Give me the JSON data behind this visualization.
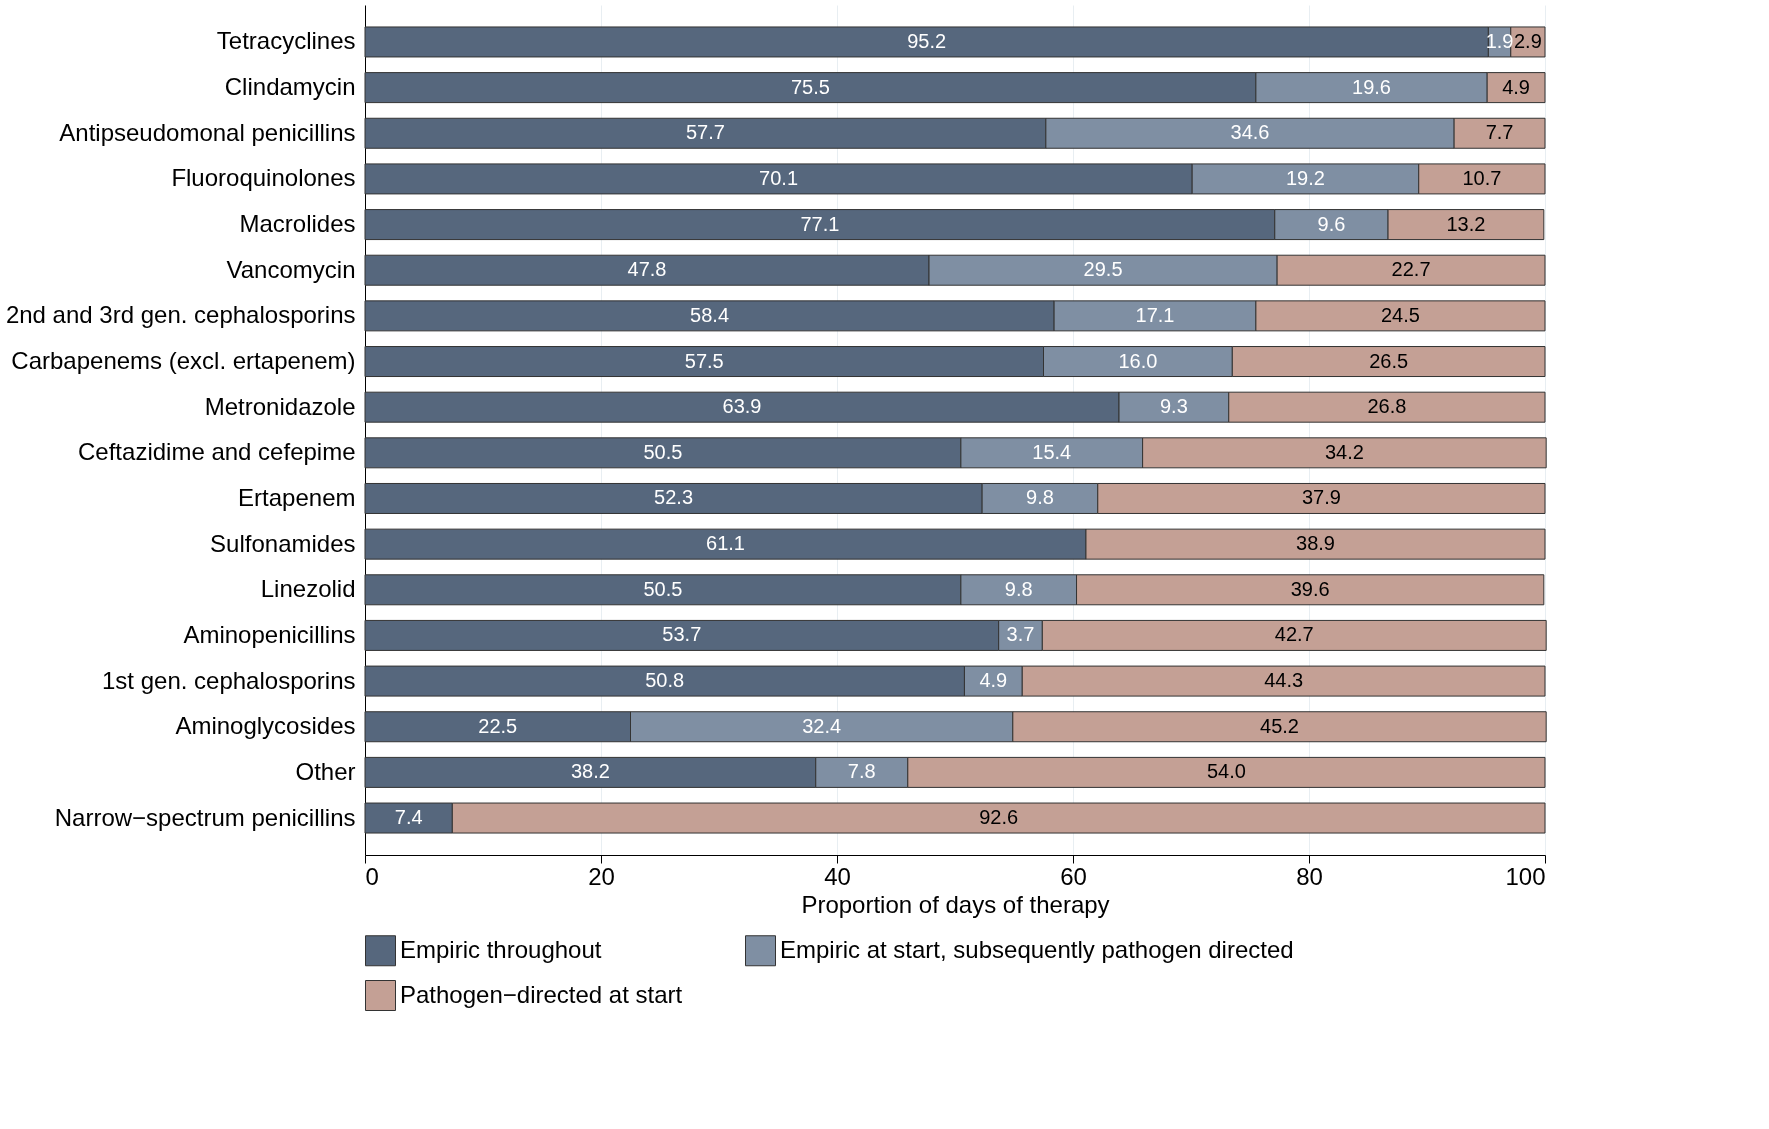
{
  "chart_data": {
    "type": "bar",
    "orientation": "horizontal",
    "stacked": true,
    "categories": [
      "Tetracyclines",
      "Clindamycin",
      "Antipseudomonal penicillins",
      "Fluoroquinolones",
      "Macrolides",
      "Vancomycin",
      "2nd and 3rd gen. cephalosporins",
      "Carbapenems (excl. ertapenem)",
      "Metronidazole",
      "Ceftazidime and cefepime",
      "Ertapenem",
      "Sulfonamides",
      "Linezolid",
      "Aminopenicillins",
      "1st gen. cephalosporins",
      "Aminoglycosides",
      "Other",
      "Narrow−spectrum penicillins"
    ],
    "series": [
      {
        "name": "Empiric throughout",
        "color": "#56677d",
        "values": [
          95.2,
          75.5,
          57.7,
          70.1,
          77.1,
          47.8,
          58.4,
          57.5,
          63.9,
          50.5,
          52.3,
          61.1,
          50.5,
          53.7,
          50.8,
          22.5,
          38.2,
          7.4
        ],
        "value_labels": [
          "95.2",
          "75.5",
          "57.7",
          "70.1",
          "77.1",
          "47.8",
          "58.4",
          "57.5",
          "63.9",
          "50.5",
          "52.3",
          "61.1",
          "50.5",
          "53.7",
          "50.8",
          "22.5",
          "38.2",
          "7.4"
        ]
      },
      {
        "name": "Empiric at start, subsequently pathogen directed",
        "color": "#7f8fa3",
        "values": [
          1.9,
          19.6,
          34.6,
          19.2,
          9.6,
          29.5,
          17.1,
          16.0,
          9.3,
          15.4,
          9.8,
          null,
          9.8,
          3.7,
          4.9,
          32.4,
          7.8,
          null
        ],
        "value_labels": [
          "1.9",
          "19.6",
          "34.6",
          "19.2",
          "9.6",
          "29.5",
          "17.1",
          "16.0",
          "9.3",
          "15.4",
          "9.8",
          null,
          "9.8",
          "3.7",
          "4.9",
          "32.4",
          "7.8",
          null
        ]
      },
      {
        "name": "Pathogen−directed at start",
        "color": "#c4a095",
        "values": [
          2.9,
          4.9,
          7.7,
          10.7,
          13.2,
          22.7,
          24.5,
          26.5,
          26.8,
          34.2,
          37.9,
          38.9,
          39.6,
          42.7,
          44.3,
          45.2,
          54.0,
          92.6
        ],
        "value_labels": [
          "2.9",
          "4.9",
          "7.7",
          "10.7",
          "13.2",
          "22.7",
          "24.5",
          "26.5",
          "26.8",
          "34.2",
          "37.9",
          "38.9",
          "39.6",
          "42.7",
          "44.3",
          "45.2",
          "54.0",
          "92.6"
        ]
      }
    ],
    "xlabel": "Proportion of days of therapy",
    "xlim": [
      0,
      100
    ],
    "xticks": [
      0,
      20,
      40,
      60,
      80,
      100
    ],
    "grid": "x",
    "legend": "bottom"
  }
}
